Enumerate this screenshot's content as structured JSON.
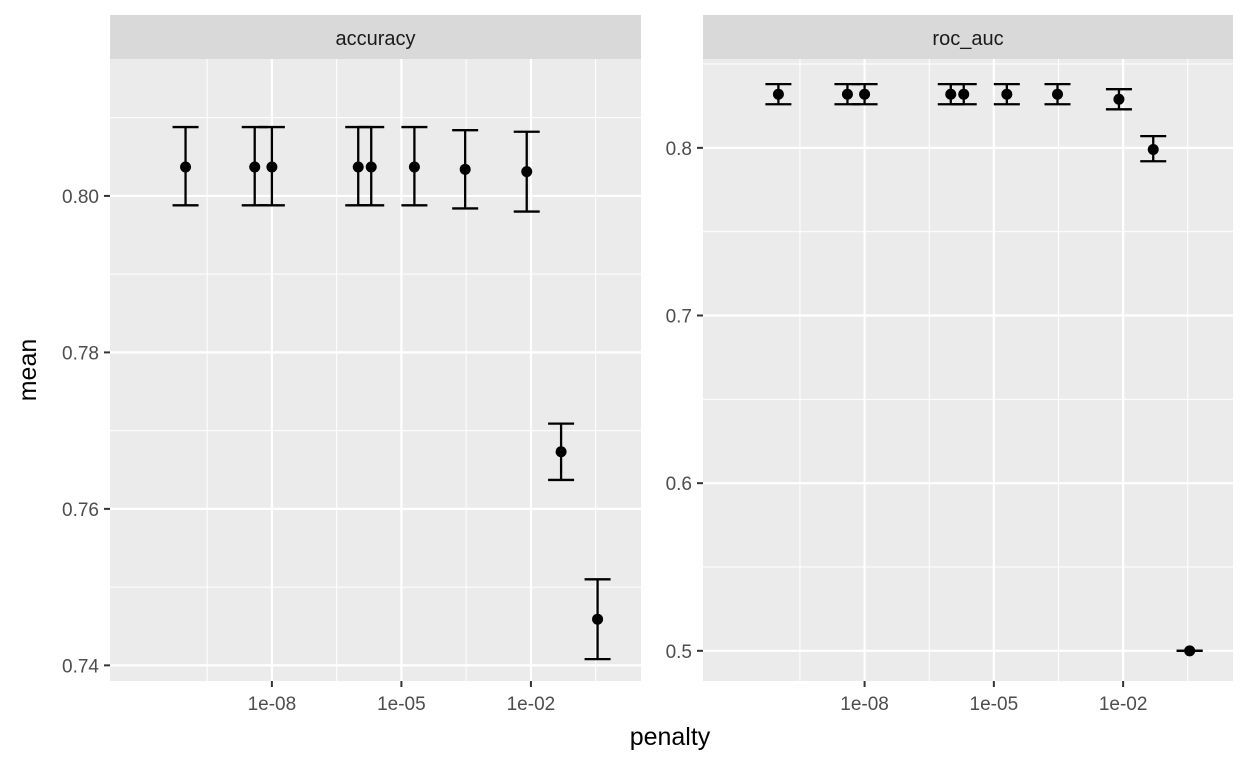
{
  "chart_data": {
    "type": "scatter",
    "xlabel": "penalty",
    "ylabel": "mean",
    "x_scale": "log10",
    "x_tick_labels": [
      "1e-08",
      "1e-05",
      "1e-02"
    ],
    "x_ticks": [
      1e-08,
      1e-05,
      0.01
    ],
    "grid": true,
    "legend": "none",
    "panels": [
      {
        "strip": "accuracy",
        "ylim": [
          0.738,
          0.8175
        ],
        "y_ticks": [
          0.74,
          0.76,
          0.78,
          0.8
        ],
        "y_tick_labels": [
          "0.74",
          "0.76",
          "0.78",
          "0.80"
        ],
        "points": [
          {
            "x": 1e-10,
            "mean": 0.8037,
            "lower": 0.7988,
            "upper": 0.8088
          },
          {
            "x": 4e-09,
            "mean": 0.8037,
            "lower": 0.7988,
            "upper": 0.8088
          },
          {
            "x": 1e-08,
            "mean": 0.8037,
            "lower": 0.7988,
            "upper": 0.8088
          },
          {
            "x": 1e-06,
            "mean": 0.8037,
            "lower": 0.7988,
            "upper": 0.8088
          },
          {
            "x": 2e-06,
            "mean": 0.8037,
            "lower": 0.7988,
            "upper": 0.8088
          },
          {
            "x": 2e-05,
            "mean": 0.8037,
            "lower": 0.7988,
            "upper": 0.8088
          },
          {
            "x": 0.0003,
            "mean": 0.8034,
            "lower": 0.7984,
            "upper": 0.8084
          },
          {
            "x": 0.008,
            "mean": 0.8031,
            "lower": 0.798,
            "upper": 0.8082
          },
          {
            "x": 0.05,
            "mean": 0.7673,
            "lower": 0.7637,
            "upper": 0.7709
          },
          {
            "x": 0.35,
            "mean": 0.7459,
            "lower": 0.7408,
            "upper": 0.751
          }
        ]
      },
      {
        "strip": "roc_auc",
        "ylim": [
          0.482,
          0.853
        ],
        "y_ticks": [
          0.5,
          0.6,
          0.7,
          0.8
        ],
        "y_tick_labels": [
          "0.5",
          "0.6",
          "0.7",
          "0.8"
        ],
        "points": [
          {
            "x": 1e-10,
            "mean": 0.832,
            "lower": 0.826,
            "upper": 0.838
          },
          {
            "x": 4e-09,
            "mean": 0.832,
            "lower": 0.826,
            "upper": 0.838
          },
          {
            "x": 1e-08,
            "mean": 0.832,
            "lower": 0.826,
            "upper": 0.838
          },
          {
            "x": 1e-06,
            "mean": 0.832,
            "lower": 0.826,
            "upper": 0.838
          },
          {
            "x": 2e-06,
            "mean": 0.832,
            "lower": 0.826,
            "upper": 0.838
          },
          {
            "x": 2e-05,
            "mean": 0.832,
            "lower": 0.826,
            "upper": 0.838
          },
          {
            "x": 0.0003,
            "mean": 0.832,
            "lower": 0.826,
            "upper": 0.838
          },
          {
            "x": 0.008,
            "mean": 0.829,
            "lower": 0.823,
            "upper": 0.835
          },
          {
            "x": 0.05,
            "mean": 0.799,
            "lower": 0.792,
            "upper": 0.807
          },
          {
            "x": 0.35,
            "mean": 0.5,
            "lower": 0.5,
            "upper": 0.5
          }
        ]
      }
    ]
  },
  "colors": {
    "panel_bg": "#ebebeb",
    "strip_bg": "#d9d9d9",
    "grid": "#ffffff",
    "marks": "#000000"
  }
}
